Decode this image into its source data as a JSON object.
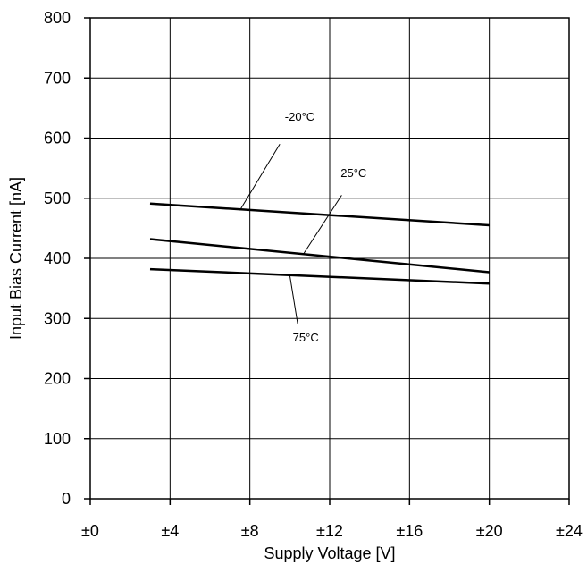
{
  "chart_data": {
    "type": "line",
    "title": "",
    "xlabel": "Supply Voltage [V]",
    "ylabel": "Input Bias Current [nA]",
    "xlim": [
      0,
      24
    ],
    "ylim": [
      0,
      800
    ],
    "x_ticks": [
      0,
      4,
      8,
      12,
      16,
      20,
      24
    ],
    "x_tick_labels": [
      "±0",
      "±4",
      "±8",
      "±12",
      "±16",
      "±20",
      "±24"
    ],
    "y_ticks": [
      0,
      100,
      200,
      300,
      400,
      500,
      600,
      700,
      800
    ],
    "y_tick_labels": [
      "0",
      "100",
      "200",
      "300",
      "400",
      "500",
      "600",
      "700",
      "800"
    ],
    "grid": true,
    "legend": "none",
    "series": [
      {
        "label": "-20°C",
        "x": [
          3,
          20
        ],
        "y": [
          491,
          455
        ],
        "label_at": [
          10.5,
          629
        ],
        "leader_from": [
          9.5,
          590
        ],
        "leader_to": [
          7.5,
          480
        ]
      },
      {
        "label": "25°C",
        "x": [
          3,
          20
        ],
        "y": [
          432,
          377
        ],
        "label_at": [
          13.2,
          535
        ],
        "leader_from": [
          12.6,
          505
        ],
        "leader_to": [
          10.7,
          408
        ]
      },
      {
        "label": "75°C",
        "x": [
          3,
          20
        ],
        "y": [
          382,
          358
        ],
        "label_at": [
          10.8,
          262
        ],
        "leader_from": [
          10.4,
          290
        ],
        "leader_to": [
          10.0,
          372
        ]
      }
    ],
    "colors": {
      "line": "#000000",
      "grid": "#000000",
      "background": "#ffffff"
    }
  }
}
